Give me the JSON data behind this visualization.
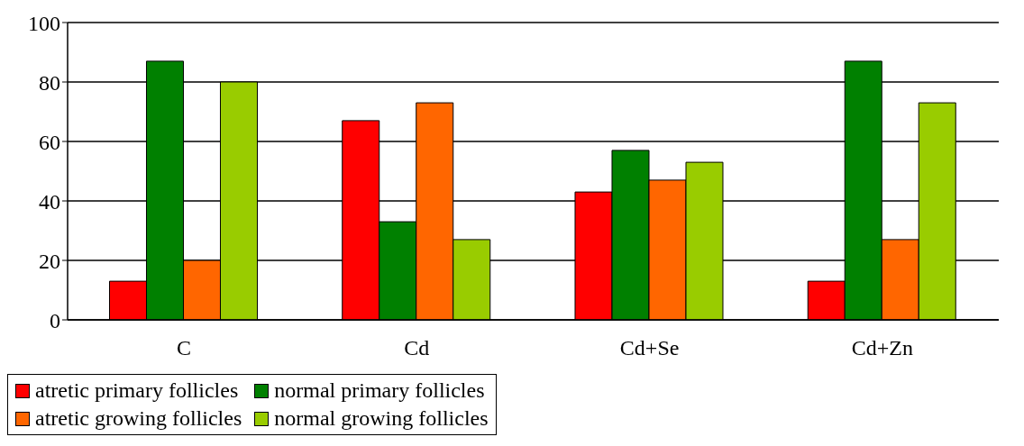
{
  "chart_data": {
    "type": "bar",
    "categories": [
      "C",
      "Cd",
      "Cd+Se",
      "Cd+Zn"
    ],
    "series": [
      {
        "name": "atretic primary follicles",
        "color": "#ff0000",
        "values": [
          13,
          67,
          43,
          13
        ]
      },
      {
        "name": "normal primary follicles",
        "color": "#008000",
        "values": [
          87,
          33,
          57,
          87
        ]
      },
      {
        "name": "atretic growing follicles",
        "color": "#ff6600",
        "values": [
          20,
          73,
          47,
          27
        ]
      },
      {
        "name": "normal growing follicles",
        "color": "#99cc00",
        "values": [
          80,
          27,
          53,
          73
        ]
      }
    ],
    "ylim": [
      0,
      100
    ],
    "yticks": [
      0,
      20,
      40,
      60,
      80,
      100
    ],
    "grid": "y",
    "legend": "bottom"
  }
}
